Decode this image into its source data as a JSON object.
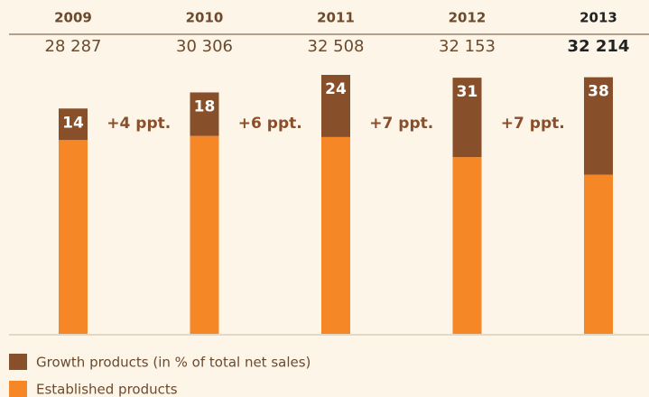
{
  "chart_data": {
    "type": "bar",
    "categories": [
      "2009",
      "2010",
      "2011",
      "2012",
      "2013"
    ],
    "sales": {
      "values": [
        28287,
        30306,
        32508,
        32153,
        32214
      ],
      "value_labels": [
        "28 287",
        "30 306",
        "32 508",
        "32 153",
        "32 214"
      ]
    },
    "series": [
      {
        "name": "Growth products (in % of total net sales)",
        "color": "#87502a",
        "values": [
          14,
          18,
          24,
          31,
          38
        ]
      },
      {
        "name": "Established products",
        "color": "#f58727",
        "values": [
          86,
          82,
          76,
          69,
          62
        ]
      }
    ],
    "annotations": [
      "+4 ppt.",
      "+6 ppt.",
      "+7 ppt.",
      "+7 ppt."
    ]
  }
}
